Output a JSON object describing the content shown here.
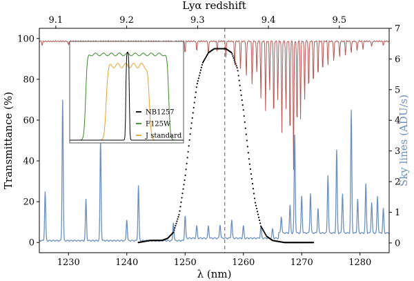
{
  "chart_data": {
    "type": "line",
    "xlabel": "λ (nm)",
    "ylabel_left": "Transmittance (%)",
    "ylabel_right": "Sky lines (ADU/s)",
    "top_axis_label": "Lyα  redshift",
    "xlim": [
      1225,
      1285
    ],
    "ylim_left": [
      -5,
      105
    ],
    "ylim_right": [
      -0.31818,
      7
    ],
    "x_ticks": [
      1230,
      1240,
      1250,
      1260,
      1270,
      1280
    ],
    "x_tick_labels": [
      "1230",
      "1240",
      "1250",
      "1260",
      "1270",
      "1280"
    ],
    "y_left_ticks": [
      0,
      20,
      40,
      60,
      80,
      100
    ],
    "y_left_tick_labels": [
      "0",
      "20",
      "40",
      "60",
      "80",
      "100"
    ],
    "y_right_ticks": [
      0,
      1,
      2,
      3,
      4,
      5,
      6,
      7
    ],
    "y_right_tick_labels": [
      "0",
      "1",
      "2",
      "3",
      "4",
      "5",
      "6",
      "7"
    ],
    "top_ticks": [
      9.1,
      9.2,
      9.3,
      9.4,
      9.5
    ],
    "top_tick_labels": [
      "9.1",
      "9.2",
      "9.3",
      "9.4",
      "9.5"
    ],
    "vline_x": 1256.8,
    "colors": {
      "nb1257": "#000000",
      "sky": "#6b8fbf",
      "atmosphere": "#b85450",
      "f125w": "#3a8a2a",
      "j_standard": "#e8a030",
      "vline": "#7f7f7f"
    },
    "series": [
      {
        "name": "NB1257",
        "axis": "left",
        "style": "dots",
        "x": [
          1242,
          1244,
          1246,
          1247,
          1248,
          1249,
          1250,
          1251,
          1252,
          1253,
          1254,
          1255,
          1256,
          1257,
          1258,
          1259,
          1260,
          1261,
          1262,
          1263,
          1264,
          1265,
          1266,
          1267,
          1268,
          1270,
          1272
        ],
        "y": [
          0,
          1,
          1,
          2,
          5,
          14,
          32,
          56,
          77,
          88,
          93,
          95,
          95,
          95,
          93,
          85,
          65,
          40,
          20,
          8,
          3,
          1,
          0.5,
          0,
          0,
          0,
          0
        ]
      },
      {
        "name": "sky lines",
        "axis": "right",
        "style": "line",
        "baseline": 0.05,
        "lines": [
          {
            "x": 1226,
            "h": 1.6
          },
          {
            "x": 1229,
            "h": 4.6
          },
          {
            "x": 1233,
            "h": 1.35
          },
          {
            "x": 1235.5,
            "h": 3.3
          },
          {
            "x": 1240,
            "h": 0.7
          },
          {
            "x": 1242,
            "h": 1.8
          },
          {
            "x": 1248,
            "h": 0.6
          },
          {
            "x": 1250,
            "h": 0.8
          },
          {
            "x": 1252,
            "h": 0.4
          },
          {
            "x": 1254,
            "h": 0.4
          },
          {
            "x": 1256,
            "h": 0.45
          },
          {
            "x": 1258,
            "h": 0.6
          },
          {
            "x": 1260,
            "h": 0.4
          },
          {
            "x": 1263,
            "h": 0.35
          },
          {
            "x": 1265,
            "h": 0.3
          },
          {
            "x": 1266.5,
            "h": 0.55
          },
          {
            "x": 1268,
            "h": 0.9
          },
          {
            "x": 1268.8,
            "h": 3.2
          },
          {
            "x": 1270,
            "h": 1.2
          },
          {
            "x": 1271.5,
            "h": 1.3
          },
          {
            "x": 1272.8,
            "h": 0.8
          },
          {
            "x": 1274.5,
            "h": 1.9
          },
          {
            "x": 1276,
            "h": 2.7
          },
          {
            "x": 1277,
            "h": 1.3
          },
          {
            "x": 1278.5,
            "h": 4.0
          },
          {
            "x": 1279.6,
            "h": 1.1
          },
          {
            "x": 1281,
            "h": 1.6
          },
          {
            "x": 1282,
            "h": 1.0
          },
          {
            "x": 1283,
            "h": 1.2
          },
          {
            "x": 1284,
            "h": 0.8
          }
        ]
      },
      {
        "name": "atmosphere",
        "axis": "left",
        "style": "line",
        "baseline": 99,
        "dips": [
          {
            "x": 1225.5,
            "d": 2
          },
          {
            "x": 1230,
            "d": 2
          },
          {
            "x": 1235,
            "d": 3
          },
          {
            "x": 1240,
            "d": 3
          },
          {
            "x": 1243,
            "d": 4
          },
          {
            "x": 1246,
            "d": 5
          },
          {
            "x": 1248,
            "d": 4
          },
          {
            "x": 1250,
            "d": 6
          },
          {
            "x": 1252,
            "d": 5
          },
          {
            "x": 1254,
            "d": 7
          },
          {
            "x": 1255.5,
            "d": 5
          },
          {
            "x": 1257,
            "d": 8
          },
          {
            "x": 1258.5,
            "d": 12
          },
          {
            "x": 1259.5,
            "d": 14
          },
          {
            "x": 1260.5,
            "d": 18
          },
          {
            "x": 1261.5,
            "d": 22
          },
          {
            "x": 1262.3,
            "d": 16
          },
          {
            "x": 1263,
            "d": 28
          },
          {
            "x": 1263.8,
            "d": 34
          },
          {
            "x": 1264.5,
            "d": 25
          },
          {
            "x": 1265.2,
            "d": 40
          },
          {
            "x": 1265.9,
            "d": 30
          },
          {
            "x": 1266.6,
            "d": 45
          },
          {
            "x": 1267.3,
            "d": 35
          },
          {
            "x": 1268,
            "d": 50
          },
          {
            "x": 1268.6,
            "d": 63
          },
          {
            "x": 1269.2,
            "d": 45
          },
          {
            "x": 1269.8,
            "d": 38
          },
          {
            "x": 1270.5,
            "d": 30
          },
          {
            "x": 1271.2,
            "d": 25
          },
          {
            "x": 1272,
            "d": 22
          },
          {
            "x": 1272.8,
            "d": 18
          },
          {
            "x": 1273.6,
            "d": 15
          },
          {
            "x": 1274.5,
            "d": 12
          },
          {
            "x": 1275.5,
            "d": 10
          },
          {
            "x": 1276.5,
            "d": 8
          },
          {
            "x": 1277.5,
            "d": 7
          },
          {
            "x": 1278.5,
            "d": 6
          },
          {
            "x": 1279.5,
            "d": 5
          },
          {
            "x": 1280.5,
            "d": 4
          },
          {
            "x": 1282,
            "d": 3
          },
          {
            "x": 1284,
            "d": 2
          }
        ]
      }
    ],
    "inset": {
      "legend": [
        {
          "name": "NB1257",
          "color": "#000000"
        },
        {
          "name": "F125W",
          "color": "#3a8a2a"
        },
        {
          "name": "J standard",
          "color": "#e8a030"
        }
      ]
    }
  }
}
